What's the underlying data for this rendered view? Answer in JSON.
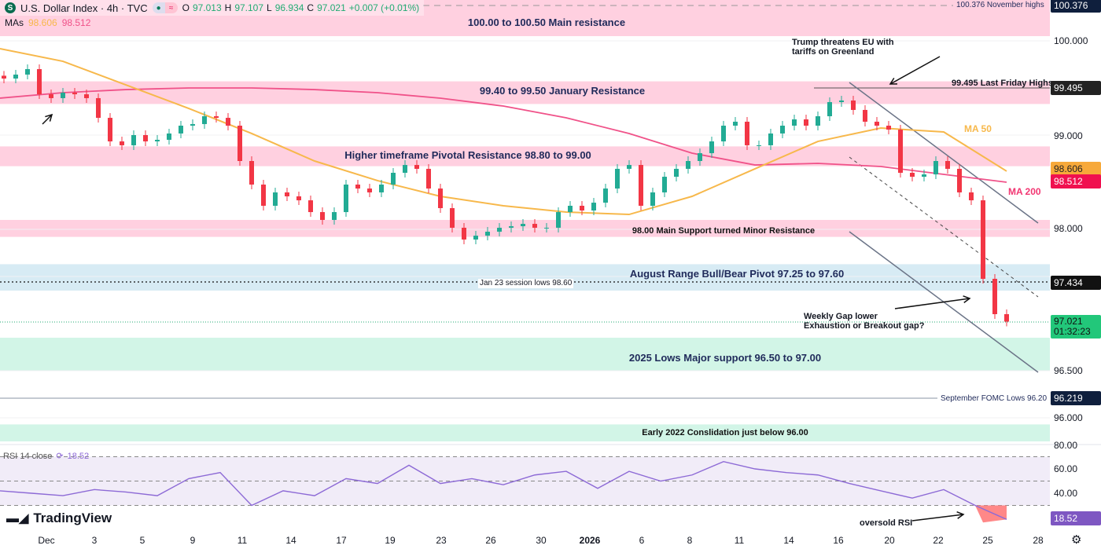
{
  "header": {
    "symbol_icon": "S",
    "title": "U.S. Dollar Index · 4h · TVC",
    "open_label": "O",
    "open": "97.013",
    "high_label": "H",
    "high": "97.107",
    "low_label": "L",
    "low": "96.934",
    "close_label": "C",
    "close": "97.021",
    "change": "+0.007 (+0.01%)"
  },
  "mas": {
    "label": "MAs",
    "ma50": "98.606",
    "ma200": "98.512"
  },
  "colors": {
    "up": "#22ab94",
    "down": "#f23645",
    "ma50": "#f7b84b",
    "ma200": "#f05289",
    "zone_pink": "#ffd0e0",
    "zone_blue": "#d7ebf4",
    "zone_green": "#d2f5e7",
    "rsi": "#8d6ad6"
  },
  "zones": [
    {
      "label": "100.00 to 100.50 Main resistance",
      "from": 100.05,
      "to": 100.55,
      "color": "pink"
    },
    {
      "label": "99.40 to 99.50 January Resistance",
      "from": 99.33,
      "to": 99.57,
      "color": "pink"
    },
    {
      "label": "Higher timeframe Pivotal Resistance 98.80 to 99.00",
      "from": 98.67,
      "to": 98.88,
      "color": "pink"
    },
    {
      "label": "98.00 Main Support turned Minor Resistance",
      "from": 97.92,
      "to": 98.1,
      "color": "pink"
    },
    {
      "label": "August Range Bull/Bear Pivot 97.25 to 97.60",
      "from": 97.35,
      "to": 97.63,
      "color": "blue"
    },
    {
      "label": "2025 Lows Major support 96.50 to 97.00",
      "from": 96.5,
      "to": 96.85,
      "color": "green"
    },
    {
      "label": "Early 2022 Conslidation just below 96.00",
      "from": 95.75,
      "to": 95.93,
      "color": "green"
    }
  ],
  "levels": {
    "nov_highs": "100.376 November highs",
    "friday_highs": "99.495 Last Friday Highs",
    "jan23": "Jan 23 session lows 98.60",
    "fomc": "September FOMC Lows 96.20"
  },
  "annotations": {
    "trump1": "Trump threatens EU with",
    "trump2": "tariffs on Greenland",
    "gap1": "Weekly Gap lower",
    "gap2": "Exhaustion or Breakout gap?",
    "ma50": "MA 50",
    "ma200": "MA 200",
    "oversold": "oversold RSI"
  },
  "price_axis": {
    "p100376": "100.376",
    "p100": "100.000",
    "p99495": "99.495",
    "p99": "99.000",
    "p98606": "98.606",
    "p98512": "98.512",
    "p98": "98.000",
    "p97434": "97.434",
    "p97021": "97.021",
    "countdown": "01:32:23",
    "p965": "96.500",
    "p96219": "96.219",
    "p96": "96.000"
  },
  "rsi": {
    "label": "RSI 14 close",
    "value": "18.52",
    "axis": [
      "80.00",
      "60.00",
      "40.00"
    ]
  },
  "dates": [
    "Dec",
    "3",
    "5",
    "9",
    "11",
    "14",
    "17",
    "19",
    "23",
    "26",
    "30",
    "2026",
    "6",
    "8",
    "11",
    "14",
    "16",
    "20",
    "22",
    "25",
    "28"
  ],
  "logo": "TradingView",
  "chart_data": {
    "type": "candlestick",
    "closes": [
      99.6,
      99.642,
      99.7,
      99.433,
      99.392,
      99.45,
      99.433,
      99.392,
      99.183,
      98.933,
      98.892,
      99.0,
      98.933,
      98.95,
      99.017,
      99.1,
      99.117,
      99.2,
      99.183,
      99.1,
      98.725,
      98.475,
      98.25,
      98.392,
      98.35,
      98.308,
      98.183,
      98.1,
      98.183,
      98.475,
      98.433,
      98.392,
      98.475,
      98.6,
      98.683,
      98.642,
      98.433,
      98.225,
      98.017,
      97.892,
      97.933,
      97.975,
      98.017,
      98.033,
      98.058,
      98.017,
      98.017,
      98.183,
      98.25,
      98.2,
      98.283,
      98.433,
      98.642,
      98.683,
      98.25,
      98.392,
      98.558,
      98.642,
      98.725,
      98.808,
      98.933,
      99.1,
      99.142,
      98.892,
      98.892,
      99.017,
      99.1,
      99.167,
      99.1,
      99.2,
      99.35,
      99.367,
      99.267,
      99.142,
      99.1,
      99.058,
      98.6,
      98.558,
      98.583,
      98.725,
      98.642,
      98.392,
      98.308,
      97.475,
      97.1,
      97.021
    ],
    "ma50": [
      99.917,
      99.783,
      99.533,
      99.283,
      99.017,
      98.725,
      98.517,
      98.35,
      98.25,
      98.183,
      98.158,
      98.35,
      98.642,
      98.933,
      99.075,
      99.033,
      98.617
    ],
    "ma200": [
      99.392,
      99.45,
      99.483,
      99.5,
      99.5,
      99.483,
      99.45,
      99.392,
      99.308,
      99.183,
      99.017,
      98.808,
      98.683,
      98.7,
      98.667,
      98.583,
      98.5
    ],
    "rsi": [
      42,
      40,
      38,
      43,
      41,
      38,
      52,
      57,
      30,
      42,
      38,
      52,
      48,
      63,
      48,
      52,
      47,
      55,
      58,
      44,
      58,
      50,
      55,
      66,
      60,
      57,
      55,
      48,
      42,
      36,
      43,
      30,
      18.5
    ],
    "rsi_levels": [
      70,
      50,
      30
    ],
    "price_range": [
      95.7,
      100.6
    ]
  }
}
